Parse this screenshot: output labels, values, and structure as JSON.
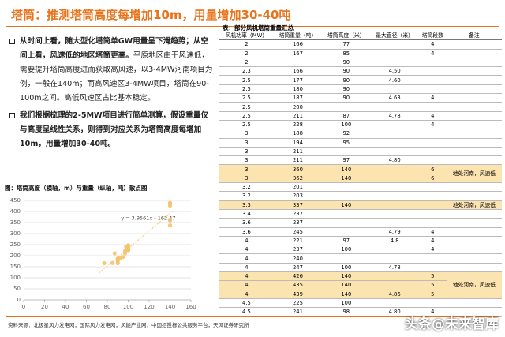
{
  "header": {
    "title": "塔筒：推测塔筒高度每增加10m，用量增加30-40吨"
  },
  "paragraphs": [
    [
      {
        "text": "从时间上看，随大型化塔筒单GW用量呈下滑趋势；从空间上看，风速低的地区塔筒更高。",
        "bold": true
      },
      {
        "text": "平原地区由于风速低，需要提升塔筒高度进而获取高风速，以3-4MW河南项目为例，一般在140m；而高风速区3-4MW项目，塔筒在90-100m之间。高低风速区占比基本稳定。",
        "bold": false
      }
    ],
    [
      {
        "text": "我们根据梳理的2-5MW项目进行简单测算，假设重量仅与高度呈线性关系，则得到对应关系为塔筒高度每增加10m，用量增加30-40吨。",
        "bold": true
      }
    ]
  ],
  "chart_data": {
    "type": "scatter",
    "title": "图：塔筒高度（横轴，m）与重量（纵轴，吨）散点图",
    "series": [
      {
        "name": "塔筒",
        "color": "#f5c26b",
        "x": [
          77,
          85,
          90,
          90,
          90,
          90,
          87,
          100,
          92,
          95,
          97,
          140,
          140,
          140,
          97,
          100,
          100,
          140,
          140,
          140,
          100,
          98
        ],
        "values": [
          166,
          167,
          166,
          177,
          180,
          187,
          211,
          228,
          188,
          194,
          211,
          360,
          362,
          337,
          221,
          237,
          247,
          426,
          435,
          439,
          225,
          241
        ]
      }
    ],
    "trendline": {
      "label": "y = 3.9561x - 162.47",
      "color": "#f5c26b",
      "x": [
        72,
        143
      ],
      "y": [
        122,
        403
      ]
    },
    "xlim": [
      0,
      160
    ],
    "xticks": [
      0,
      20,
      40,
      60,
      80,
      100,
      120,
      140,
      160
    ],
    "ylim": [
      0,
      450
    ],
    "yticks": [
      0,
      50,
      100,
      150,
      200,
      250,
      300,
      350,
      400,
      450
    ],
    "grid": true
  },
  "table": {
    "title": "表：部分风机塔筒重量汇总",
    "header": [
      "风机功率（MW）",
      "塔筒重量（吨）",
      "塔筒高度（米）",
      "最大直径（米）",
      "塔筒段数",
      "备注"
    ],
    "rows": [
      [
        "2",
        "166",
        "77",
        null,
        "4",
        null
      ],
      [
        "2",
        "167",
        "85",
        null,
        "4",
        null
      ],
      [
        "2",
        null,
        "90",
        null,
        null,
        null
      ],
      [
        "2.3",
        "166",
        "90",
        "4.50",
        null,
        null
      ],
      [
        "2.5",
        "177",
        "90",
        "4.60",
        null,
        null
      ],
      [
        "2.5",
        "180",
        "90",
        null,
        null,
        null
      ],
      [
        "2.5",
        "187",
        "90",
        "4.63",
        "4",
        null
      ],
      [
        "2.5",
        "200",
        null,
        null,
        null,
        null
      ],
      [
        "2.5",
        "211",
        "87",
        "4.78",
        "4",
        null
      ],
      [
        "2.5",
        "228",
        "100",
        null,
        "4",
        null
      ],
      [
        "3",
        "188",
        "92",
        null,
        null,
        null
      ],
      [
        "3",
        "194",
        "95",
        null,
        null,
        null
      ],
      [
        "3",
        "211",
        null,
        null,
        null,
        null
      ],
      [
        "3",
        "211",
        "97",
        "4.80",
        null,
        null
      ],
      [
        "3",
        "360",
        "140",
        null,
        "6",
        "地处河南，风速低"
      ],
      [
        "3",
        "362",
        "140",
        null,
        "6",
        null
      ],
      [
        "3.2",
        "201",
        null,
        null,
        null,
        null
      ],
      [
        "3.2",
        "203",
        null,
        null,
        null,
        null
      ],
      [
        "3.3",
        "337",
        "140",
        null,
        null,
        "地处河南，风速低"
      ],
      [
        "3.4",
        "237",
        null,
        null,
        null,
        null
      ],
      [
        "3.6",
        "237",
        null,
        null,
        null,
        null
      ],
      [
        "3.6",
        "245",
        null,
        "4.79",
        "4",
        null
      ],
      [
        "4",
        "221",
        "97",
        "4.8",
        "4",
        null
      ],
      [
        "4",
        "237",
        "100",
        null,
        "4",
        null
      ],
      [
        "4",
        "240",
        null,
        null,
        null,
        null
      ],
      [
        "4",
        "247",
        "100",
        "4.78",
        null,
        null
      ],
      [
        "4",
        "426",
        "140",
        null,
        "5",
        null
      ],
      [
        "4",
        "435",
        "140",
        null,
        "5",
        "地处河南，风速低"
      ],
      [
        "4",
        "439",
        "140",
        "4.86",
        "5",
        null
      ],
      [
        "4.5",
        "225",
        "100",
        null,
        null,
        null
      ],
      [
        "4.5",
        "241",
        "98",
        "4.80",
        "4",
        null
      ]
    ],
    "highlight_rows": [
      14,
      15,
      18,
      26,
      27,
      28
    ],
    "highlight_color": "#fce4b0",
    "merged_remarks": [
      {
        "row": 14,
        "span": 2
      },
      {
        "row": 26,
        "span": 3
      }
    ]
  },
  "footer": {
    "source": "资料来源：北极星风力发电网，国际风力发电网，风能产业网，中国招投标公共服务平台，天风证券研究所",
    "watermark": "头条@未来智库"
  }
}
